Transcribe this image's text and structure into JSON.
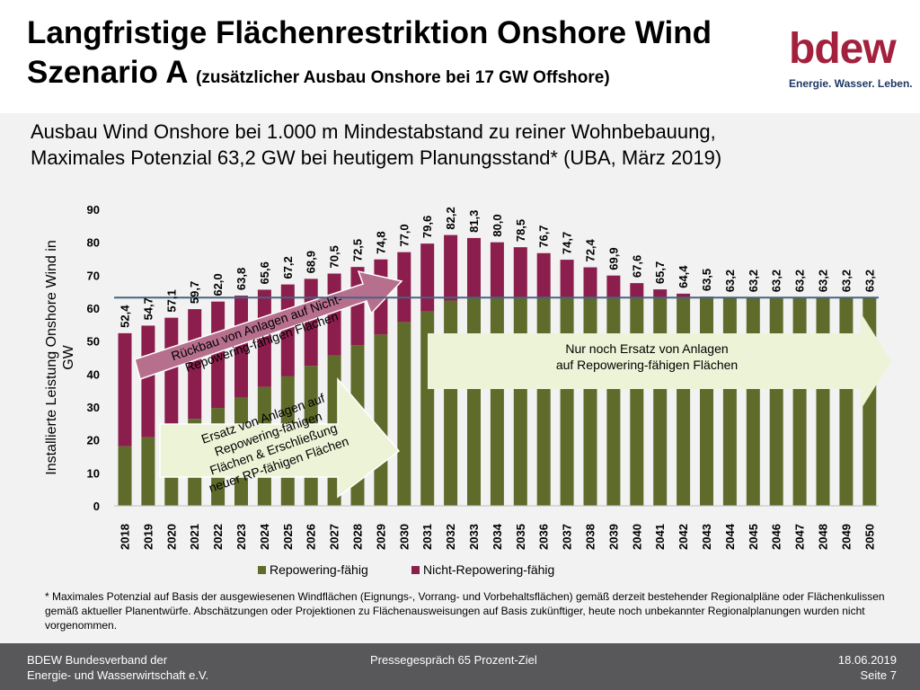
{
  "header": {
    "title_line1": "Langfristige Flächenrestriktion Onshore Wind",
    "title_line2": "Szenario A",
    "title_line2_sub": "(zusätzlicher Ausbau Onshore bei 17 GW Offshore)",
    "logo_text": "bdew",
    "logo_tagline": "Energie. Wasser. Leben."
  },
  "subtitle_line1": "Ausbau Wind Onshore bei 1.000 m Mindestabstand zu reiner Wohnbebauung,",
  "subtitle_line2": "Maximales Potenzial 63,2 GW bei heutigem Planungsstand* (UBA, März 2019)",
  "chart_data": {
    "type": "bar",
    "stacked": true,
    "categories": [
      "2018",
      "2019",
      "2020",
      "2021",
      "2022",
      "2023",
      "2024",
      "2025",
      "2026",
      "2027",
      "2028",
      "2029",
      "2030",
      "2031",
      "2032",
      "2033",
      "2034",
      "2035",
      "2036",
      "2037",
      "2038",
      "2039",
      "2040",
      "2041",
      "2042",
      "2043",
      "2044",
      "2045",
      "2046",
      "2047",
      "2048",
      "2049",
      "2050"
    ],
    "series": [
      {
        "name": "Repowering-fähig",
        "values": [
          18.1,
          20.8,
          23.2,
          26.4,
          29.7,
          33.0,
          36.1,
          39.3,
          42.5,
          45.6,
          48.8,
          52.0,
          55.8,
          59.0,
          62.3,
          63.2,
          63.2,
          63.2,
          63.2,
          63.2,
          63.2,
          63.2,
          63.2,
          63.2,
          63.2,
          63.2,
          63.2,
          63.2,
          63.2,
          63.2,
          63.2,
          63.2,
          63.2
        ]
      },
      {
        "name": "Nicht-Repowering-fähig",
        "values": [
          34.3,
          33.9,
          33.9,
          33.3,
          32.3,
          30.8,
          29.5,
          27.9,
          26.4,
          24.9,
          23.7,
          22.8,
          21.2,
          20.6,
          19.9,
          18.1,
          16.8,
          15.3,
          13.5,
          11.5,
          9.2,
          6.7,
          4.4,
          2.5,
          1.2,
          0.3,
          0,
          0,
          0,
          0,
          0,
          0,
          0
        ]
      }
    ],
    "totals": [
      "52,4",
      "54,7",
      "57,1",
      "59,7",
      "62,0",
      "63,8",
      "65,6",
      "67,2",
      "68,9",
      "70,5",
      "72,5",
      "74,8",
      "77,0",
      "79,6",
      "82,2",
      "81,3",
      "80,0",
      "78,5",
      "76,7",
      "74,7",
      "72,4",
      "69,9",
      "67,6",
      "65,7",
      "64,4",
      "63,5",
      "63,2",
      "63,2",
      "63,2",
      "63,2",
      "63,2",
      "63,2",
      "63,2"
    ],
    "reference_line": 63.2,
    "ylim": [
      0,
      90
    ],
    "yticks": [
      "0",
      "10",
      "20",
      "30",
      "40",
      "50",
      "60",
      "70",
      "80",
      "90"
    ],
    "ylabel": "Installierte Leistung Onshore Wind in GW",
    "xlabel": "",
    "legend_position": "bottom",
    "grid": false,
    "annotations": {
      "arrow_back": "Rückbau von Anlagen auf Nicht-Repowering-fähigen Flächen",
      "arrow_replace": "Ersatz von Anlagen auf Repowering-fähigen Flächen & Erschließung neuer RP-fähigen Flächen",
      "arrow_only": "Nur noch Ersatz von Anlagen auf Repowering-fähigen Flächen"
    },
    "colors": {
      "repowering": "#5F6B2A",
      "non_repowering": "#8B1E4C",
      "reference_line": "#4A6283",
      "arrow_back": "#B76F8E",
      "arrow_green": "#EDF3D6"
    }
  },
  "footnote": "* Maximales Potenzial auf Basis der ausgewiesenen Windflächen (Eignungs-, Vorrang- und Vorbehaltsflächen) gemäß derzeit bestehender Regionalpläne oder Flächenkulissen gemäß aktueller Planentwürfe. Abschätzungen oder Projektionen zu Flächenausweisungen auf Basis zukünftiger, heute noch unbekannter Regionalplanungen wurden nicht vorgenommen.",
  "footer": {
    "org_line1": "BDEW Bundesverband der",
    "org_line2": "Energie- und Wasserwirtschaft e.V.",
    "event": "Pressegespräch 65 Prozent-Ziel",
    "date": "18.06.2019",
    "page": "Seite 7"
  }
}
